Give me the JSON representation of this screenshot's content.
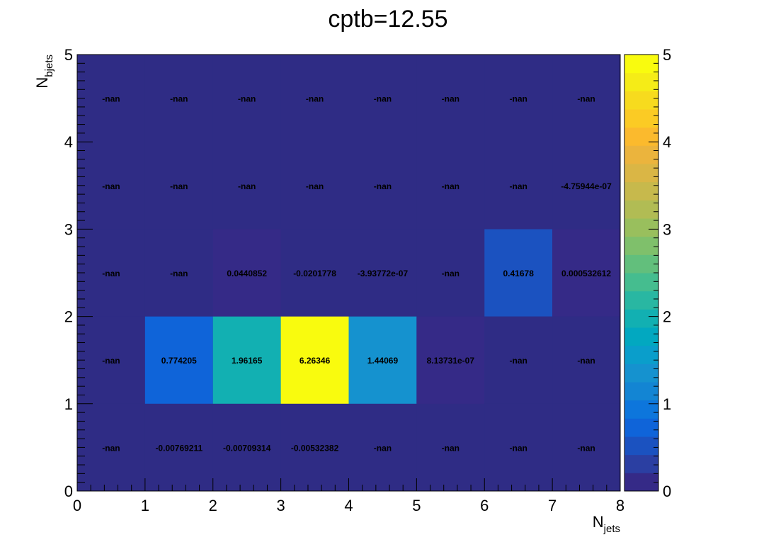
{
  "chart_data": {
    "type": "heatmap",
    "title": "cptb=12.55",
    "xlabel": {
      "main": "N",
      "sub": "jets"
    },
    "ylabel": {
      "main": "N",
      "sub": "bjets"
    },
    "xlim": [
      0,
      8
    ],
    "ylim": [
      0,
      5
    ],
    "x_ticks": [
      "0",
      "1",
      "2",
      "3",
      "4",
      "5",
      "6",
      "7",
      "8"
    ],
    "y_ticks": [
      "0",
      "1",
      "2",
      "3",
      "4",
      "5"
    ],
    "zlim": [
      0,
      5
    ],
    "z_ticks": [
      "0",
      "1",
      "2",
      "3",
      "4",
      "5"
    ],
    "colormap_note": "ROOT kBird palette",
    "cells": [
      {
        "x": 0,
        "y": 0,
        "value": null,
        "label": "-nan"
      },
      {
        "x": 1,
        "y": 0,
        "value": -0.00769211,
        "label": "-0.00769211"
      },
      {
        "x": 2,
        "y": 0,
        "value": -0.00709314,
        "label": "-0.00709314"
      },
      {
        "x": 3,
        "y": 0,
        "value": -0.00532382,
        "label": "-0.00532382"
      },
      {
        "x": 4,
        "y": 0,
        "value": null,
        "label": "-nan"
      },
      {
        "x": 5,
        "y": 0,
        "value": null,
        "label": "-nan"
      },
      {
        "x": 6,
        "y": 0,
        "value": null,
        "label": "-nan"
      },
      {
        "x": 7,
        "y": 0,
        "value": null,
        "label": "-nan"
      },
      {
        "x": 0,
        "y": 1,
        "value": null,
        "label": "-nan"
      },
      {
        "x": 1,
        "y": 1,
        "value": 0.774205,
        "label": "0.774205"
      },
      {
        "x": 2,
        "y": 1,
        "value": 1.96165,
        "label": "1.96165"
      },
      {
        "x": 3,
        "y": 1,
        "value": 6.26346,
        "label": "6.26346"
      },
      {
        "x": 4,
        "y": 1,
        "value": 1.44069,
        "label": "1.44069"
      },
      {
        "x": 5,
        "y": 1,
        "value": 8.13731e-07,
        "label": "8.13731e-07"
      },
      {
        "x": 6,
        "y": 1,
        "value": null,
        "label": "-nan"
      },
      {
        "x": 7,
        "y": 1,
        "value": null,
        "label": "-nan"
      },
      {
        "x": 0,
        "y": 2,
        "value": null,
        "label": "-nan"
      },
      {
        "x": 1,
        "y": 2,
        "value": null,
        "label": "-nan"
      },
      {
        "x": 2,
        "y": 2,
        "value": 0.0440852,
        "label": "0.0440852"
      },
      {
        "x": 3,
        "y": 2,
        "value": -0.0201778,
        "label": "-0.0201778"
      },
      {
        "x": 4,
        "y": 2,
        "value": -3.93772e-07,
        "label": "-3.93772e-07"
      },
      {
        "x": 5,
        "y": 2,
        "value": null,
        "label": "-nan"
      },
      {
        "x": 6,
        "y": 2,
        "value": 0.41678,
        "label": "0.41678"
      },
      {
        "x": 7,
        "y": 2,
        "value": 0.000532612,
        "label": "0.000532612"
      },
      {
        "x": 0,
        "y": 3,
        "value": null,
        "label": "-nan"
      },
      {
        "x": 1,
        "y": 3,
        "value": null,
        "label": "-nan"
      },
      {
        "x": 2,
        "y": 3,
        "value": null,
        "label": "-nan"
      },
      {
        "x": 3,
        "y": 3,
        "value": null,
        "label": "-nan"
      },
      {
        "x": 4,
        "y": 3,
        "value": null,
        "label": "-nan"
      },
      {
        "x": 5,
        "y": 3,
        "value": null,
        "label": "-nan"
      },
      {
        "x": 6,
        "y": 3,
        "value": null,
        "label": "-nan"
      },
      {
        "x": 7,
        "y": 3,
        "value": -4.75944e-07,
        "label": "-4.75944e-07"
      },
      {
        "x": 0,
        "y": 4,
        "value": null,
        "label": "-nan"
      },
      {
        "x": 1,
        "y": 4,
        "value": null,
        "label": "-nan"
      },
      {
        "x": 2,
        "y": 4,
        "value": null,
        "label": "-nan"
      },
      {
        "x": 3,
        "y": 4,
        "value": null,
        "label": "-nan"
      },
      {
        "x": 4,
        "y": 4,
        "value": null,
        "label": "-nan"
      },
      {
        "x": 5,
        "y": 4,
        "value": null,
        "label": "-nan"
      },
      {
        "x": 6,
        "y": 4,
        "value": null,
        "label": "-nan"
      },
      {
        "x": 7,
        "y": 4,
        "value": null,
        "label": "-nan"
      }
    ]
  },
  "colors": {
    "background": "#2f2c85",
    "frame": "#000000",
    "palette": [
      "#352a87",
      "#2b3fa2",
      "#1b52c0",
      "#0f64d9",
      "#0d76dc",
      "#1385d3",
      "#1592cf",
      "#0a9ecb",
      "#02a8c0",
      "#12b0b2",
      "#29b7a2",
      "#45bd8f",
      "#62bf7c",
      "#7fc06b",
      "#99bf5d",
      "#b1bc54",
      "#c7b94c",
      "#dab645",
      "#ebb43d",
      "#fbba2d",
      "#fbcb24",
      "#f7db1e",
      "#f5ec17",
      "#f9fb0e"
    ]
  }
}
